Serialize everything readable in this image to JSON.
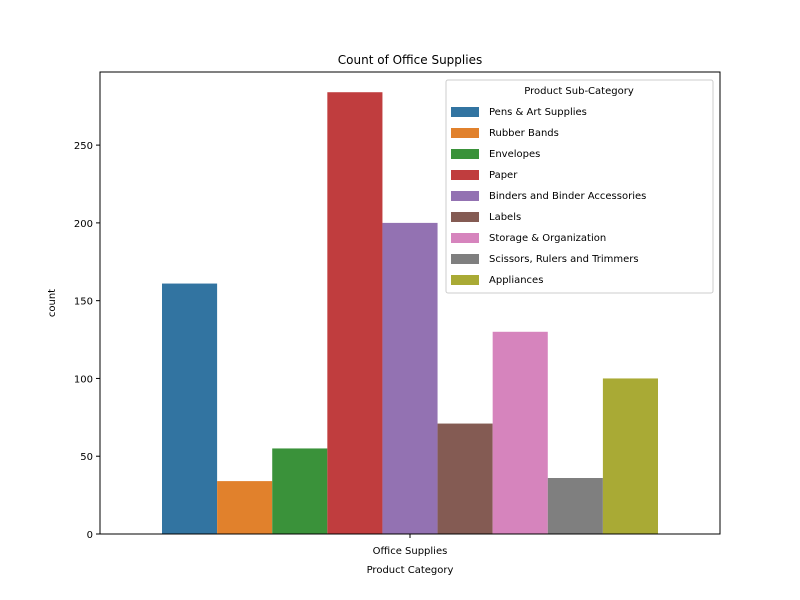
{
  "chart_data": {
    "type": "bar",
    "title": "Count of Office Supplies",
    "xlabel": "Product Category",
    "ylabel": "count",
    "categories": [
      "Office Supplies"
    ],
    "ylim": [
      0,
      297
    ],
    "yticks": [
      0,
      50,
      100,
      150,
      200,
      250
    ],
    "grid": false,
    "legend": {
      "title": "Product Sub-Category",
      "position": "top-right"
    },
    "series": [
      {
        "name": "Pens & Art Supplies",
        "values": [
          161
        ],
        "color": "#3274a1"
      },
      {
        "name": "Rubber Bands",
        "values": [
          34
        ],
        "color": "#e1812c"
      },
      {
        "name": "Envelopes",
        "values": [
          55
        ],
        "color": "#3a923a"
      },
      {
        "name": "Paper",
        "values": [
          284
        ],
        "color": "#c03d3e"
      },
      {
        "name": "Binders and Binder Accessories",
        "values": [
          200
        ],
        "color": "#9372b2"
      },
      {
        "name": "Labels",
        "values": [
          71
        ],
        "color": "#845b53"
      },
      {
        "name": "Storage & Organization",
        "values": [
          130
        ],
        "color": "#d684bd"
      },
      {
        "name": "Scissors, Rulers and Trimmers",
        "values": [
          36
        ],
        "color": "#7f7f7f"
      },
      {
        "name": "Appliances",
        "values": [
          100
        ],
        "color": "#a9aa35"
      }
    ]
  }
}
